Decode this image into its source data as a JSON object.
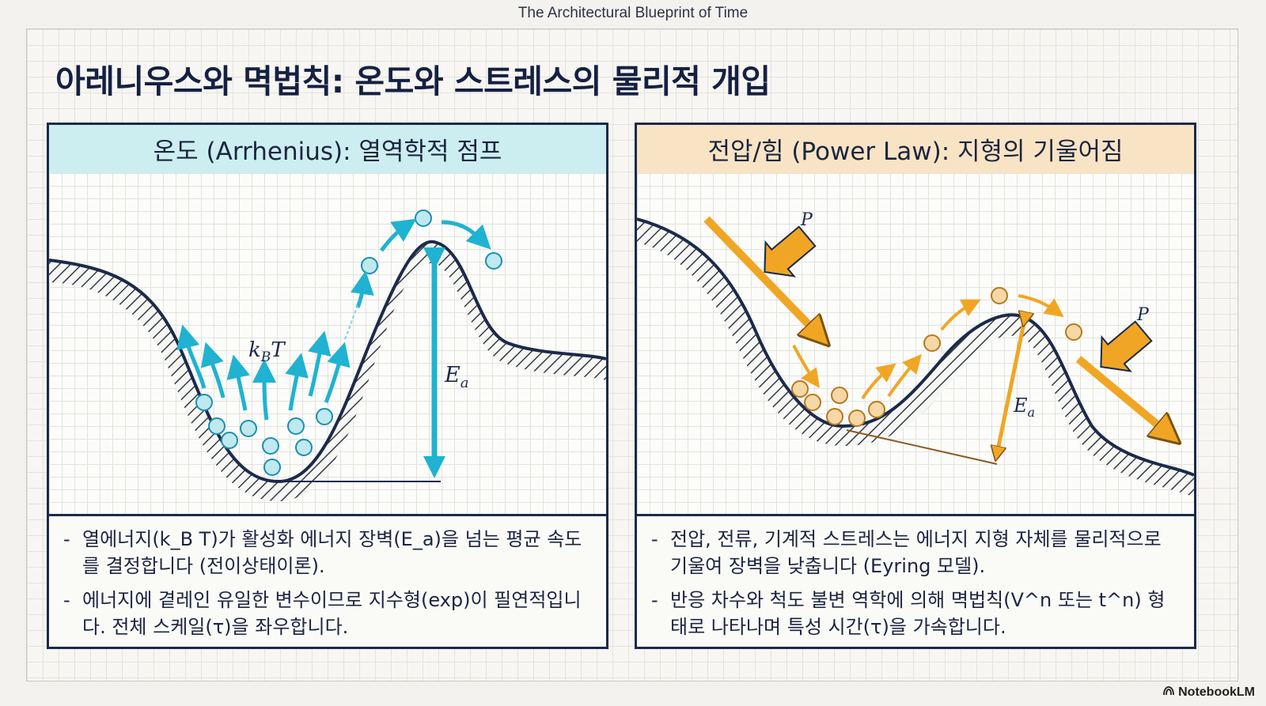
{
  "top_caption": "The Architectural Blueprint of Time",
  "title": "아레니우스와 멱법칙: 온도와 스트레스의 물리적 개입",
  "left_panel": {
    "header": "온도 (Arrhenius): 열역학적 점프",
    "kt_label": "k_B T",
    "ea_label": "E_a",
    "bullets": [
      "열에너지(k_B T)가 활성화 에너지 장벽(E_a)을 넘는 평균 속도를 결정합니다 (전이상태이론).",
      "에너지에 곁레인 유일한 변수이므로 지수형(exp)이 필연적입니다. 전체 스케일(τ)을 좌우합니다."
    ],
    "colors": {
      "header_bg": "#cdeef0",
      "accent": "#1fb3d1",
      "particle": "#bfe8ef"
    }
  },
  "right_panel": {
    "header": "전압/힘 (Power Law): 지형의 기울어짐",
    "force_label": "P",
    "ea_label": "E_a",
    "bullets": [
      "전압, 전류, 기계적 스트레스는 에너지 지형 자체를 물리적으로 기울여 장벽을 낮춥니다 (Eyring 모델).",
      "반응 차수와 척도 불변 역학에 의해 멱법칙(V^n 또는 t^n) 형태로 나타나며 특성 시간(τ)을 가속합니다."
    ],
    "colors": {
      "header_bg": "#f8e4c4",
      "accent": "#f0a624",
      "particle": "#f6d8a6"
    }
  },
  "logo": "NotebookLM"
}
